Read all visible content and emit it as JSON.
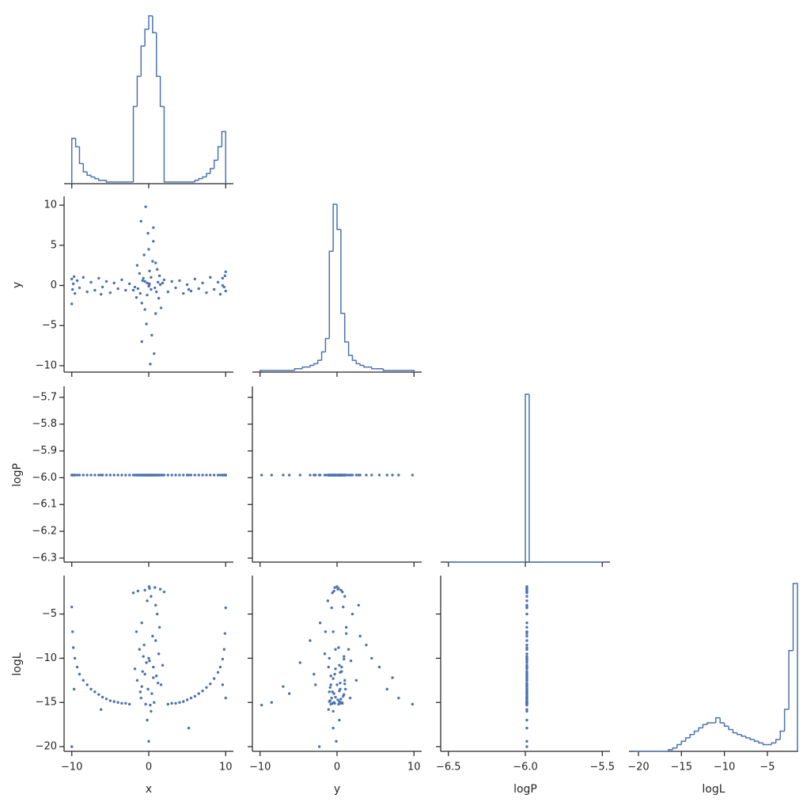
{
  "chart_data": {
    "type": "corner",
    "color": "#4c72b0",
    "variables": [
      {
        "name": "x",
        "xlim": [
          -11,
          11
        ],
        "xticks": [
          {
            "value": -10,
            "label": "−10"
          },
          0,
          10
        ]
      },
      {
        "name": "y",
        "xlim": [
          -11,
          11
        ],
        "xticks": [
          {
            "value": -10,
            "label": "−10"
          },
          0,
          10
        ],
        "ylim": [
          -10.8,
          11.1
        ],
        "yticks": [
          {
            "value": -10,
            "label": "−10"
          },
          {
            "value": -5,
            "label": "−5"
          },
          0,
          5,
          10
        ]
      },
      {
        "name": "logP",
        "xlim": [
          -6.55,
          -5.45
        ],
        "xticks": [
          {
            "value": -6.5,
            "label": "−6.5"
          },
          {
            "value": -6.0,
            "label": "−6.0"
          },
          {
            "value": -5.5,
            "label": "−5.5"
          }
        ],
        "ylim": [
          -6.315,
          -5.659
        ],
        "yticks": [
          {
            "value": -6.3,
            "label": "−6.3"
          },
          {
            "value": -6.2,
            "label": "−6.2"
          },
          {
            "value": -6.1,
            "label": "−6.1"
          },
          {
            "value": -6.0,
            "label": "−6.0"
          },
          {
            "value": -5.9,
            "label": "−5.9"
          },
          {
            "value": -5.8,
            "label": "−5.8"
          },
          {
            "value": -5.7,
            "label": "−5.7"
          }
        ]
      },
      {
        "name": "logL",
        "xlim": [
          -21.1,
          -1.4
        ],
        "xticks": [
          {
            "value": -20,
            "label": "−20"
          },
          {
            "value": -15,
            "label": "−15"
          },
          {
            "value": -10,
            "label": "−10"
          },
          {
            "value": -5,
            "label": "−5"
          }
        ],
        "ylim": [
          -20.53,
          -0.65
        ],
        "yticks": [
          {
            "value": -20,
            "label": "−20"
          },
          {
            "value": -15,
            "label": "−15"
          },
          {
            "value": -10,
            "label": "−10"
          },
          {
            "value": -5,
            "label": "−5"
          }
        ]
      }
    ],
    "samples": {
      "x": [
        0.1,
        -0.5,
        0.8,
        1.5,
        -1.4,
        0.3,
        -0.2,
        1.1,
        -0.9,
        0.5,
        -0.6,
        0.9,
        -1.2,
        1.3,
        0.0,
        -0.3,
        0.6,
        -0.8,
        1.0,
        -1.5,
        1.6,
        -0.1,
        0.4,
        -1.0,
        0.7,
        -0.4,
        0.2,
        1.8,
        -1.8,
        0.05,
        -0.7,
        1.2,
        -1.1,
        0.3,
        -0.2,
        1.4,
        -1.6,
        0.9,
        -0.5,
        2.0,
        -2.0,
        0.0,
        0.6,
        -0.9,
        0.1,
        -10,
        -9.9,
        -9.8,
        -9.6,
        -9.3,
        -9.0,
        -8.5,
        -8.0,
        -7.5,
        -7.0,
        -6.5,
        -6.0,
        -5.5,
        -5.0,
        -4.5,
        -4.0,
        -3.5,
        -3.0,
        -2.5,
        -10,
        -9.7,
        -6.2,
        10,
        9.9,
        9.8,
        9.6,
        9.3,
        9.0,
        8.5,
        8.0,
        7.5,
        7.0,
        6.5,
        6.0,
        5.5,
        5.0,
        4.5,
        4.0,
        3.5,
        3.0,
        2.5,
        10,
        5.2,
        9.6
      ],
      "y": [
        0.2,
        0.5,
        -0.3,
        0.1,
        -0.4,
        1.0,
        -1.2,
        2.0,
        -2.2,
        3.0,
        3.8,
        -3.5,
        1.5,
        -1.6,
        4.5,
        -4.8,
        5.5,
        0.6,
        -0.8,
        2.5,
        -2.8,
        6.5,
        -6.2,
        8.0,
        -8.5,
        9.8,
        -9.8,
        0.3,
        -0.2,
        0.0,
        0.9,
        0.4,
        -1.0,
        -0.5,
        0.3,
        1.2,
        -1.5,
        2.8,
        -3.0,
        0.7,
        -0.6,
        -0.1,
        7.2,
        -7.0,
        1.8,
        0.8,
        -0.5,
        0.2,
        -1.0,
        0.6,
        -0.3,
        1.0,
        -0.8,
        0.4,
        -0.6,
        0.9,
        -0.2,
        0.5,
        -0.9,
        0.3,
        -0.4,
        0.7,
        -0.6,
        0.2,
        -2.3,
        1.1,
        -1.1,
        -0.7,
        1.2,
        -0.2,
        0.9,
        -1.1,
        0.4,
        -0.5,
        1.0,
        -0.9,
        0.3,
        -0.4,
        0.8,
        -0.7,
        0.1,
        -1.0,
        0.6,
        -0.3,
        0.5,
        -0.8,
        1.7,
        -0.5,
        0.0
      ],
      "logP": [
        -5.99,
        -5.99,
        -5.99,
        -5.99,
        -5.99,
        -5.99,
        -5.99,
        -5.99,
        -5.99,
        -5.99,
        -5.99,
        -5.99,
        -5.99,
        -5.99,
        -5.99,
        -5.99,
        -5.99,
        -5.99,
        -5.99,
        -5.99,
        -5.99,
        -5.99,
        -5.99,
        -5.99,
        -5.99,
        -5.99,
        -5.99,
        -5.99,
        -5.99,
        -5.99,
        -5.99,
        -5.99,
        -5.99,
        -5.99,
        -5.99,
        -5.99,
        -5.99,
        -5.99,
        -5.99,
        -5.99,
        -5.99,
        -5.99,
        -5.99,
        -5.99,
        -5.99,
        -5.99,
        -5.99,
        -5.99,
        -5.99,
        -5.99,
        -5.99,
        -5.99,
        -5.99,
        -5.99,
        -5.99,
        -5.99,
        -5.99,
        -5.99,
        -5.99,
        -5.99,
        -5.99,
        -5.99,
        -5.99,
        -5.99,
        -5.99,
        -5.99,
        -5.99,
        -5.99,
        -5.99,
        -5.99,
        -5.99,
        -5.99,
        -5.99,
        -5.99,
        -5.99,
        -5.99,
        -5.99,
        -5.99,
        -5.99,
        -5.99,
        -5.99,
        -5.99,
        -5.99,
        -5.99,
        -5.99,
        -5.99,
        -5.99,
        -5.99,
        -5.99
      ],
      "logL": [
        -2.1,
        -2.3,
        -2.0,
        -2.2,
        -2.4,
        -3.0,
        -3.5,
        -5.0,
        -6.0,
        -7.5,
        -8.5,
        -8.0,
        -9.0,
        -9.5,
        -10.0,
        -10.5,
        -11.0,
        -11.5,
        -12.0,
        -12.5,
        -13.0,
        -13.5,
        -14.0,
        -14.5,
        -15.0,
        -15.2,
        -15.3,
        -10.8,
        -11.2,
        -1.9,
        -9.8,
        -12.8,
        -13.8,
        -16.0,
        -17.0,
        -6.5,
        -7.0,
        -4.0,
        -11.8,
        -2.5,
        -2.6,
        -19.4,
        -12.2,
        -13.2,
        -10.3,
        -4.2,
        -7.0,
        -8.8,
        -10.0,
        -11.0,
        -11.8,
        -12.5,
        -13.0,
        -13.5,
        -13.8,
        -14.1,
        -14.4,
        -14.6,
        -14.8,
        -14.9,
        -15.0,
        -15.1,
        -15.1,
        -15.2,
        -20.0,
        -13.5,
        -15.8,
        -4.3,
        -7.2,
        -9.0,
        -10.1,
        -11.0,
        -11.6,
        -12.3,
        -12.9,
        -13.3,
        -13.7,
        -14.0,
        -14.3,
        -14.5,
        -14.7,
        -14.9,
        -15.0,
        -15.1,
        -15.1,
        -15.2,
        -14.5,
        -17.9,
        -13.0
      ]
    },
    "histograms": {
      "x": {
        "bins": [
          -10,
          -9.5,
          -9,
          -8.5,
          -8,
          -7.5,
          -7,
          -6.5,
          -6,
          -5.5,
          -5,
          -4.5,
          -4,
          -3.5,
          -3,
          -2.5,
          -2,
          -1.5,
          -1,
          -0.5,
          0,
          0.5,
          1,
          1.5,
          2,
          2.5,
          3,
          3.5,
          4,
          4.5,
          5,
          5.5,
          6,
          6.5,
          7,
          7.5,
          8,
          8.5,
          9,
          9.5,
          10
        ],
        "counts": [
          27,
          22,
          12,
          7,
          5,
          4,
          3,
          2,
          2,
          1,
          1,
          1,
          1,
          1,
          1,
          1,
          46,
          64,
          82,
          92,
          100,
          90,
          64,
          46,
          1,
          1,
          1,
          1,
          1,
          1,
          1,
          1,
          2,
          3,
          4,
          6,
          9,
          14,
          22,
          31
        ]
      },
      "y": {
        "bins": [
          -10,
          -9.5,
          -9,
          -8.5,
          -8,
          -7.5,
          -7,
          -6.5,
          -6,
          -5.5,
          -5,
          -4.5,
          -4,
          -3.5,
          -3,
          -2.5,
          -2,
          -1.5,
          -1,
          -0.5,
          0,
          0.5,
          1,
          1.5,
          2,
          2.5,
          3,
          3.5,
          4,
          4.5,
          5,
          5.5,
          6,
          6.5,
          7,
          7.5,
          8,
          8.5,
          9,
          9.5,
          10
        ],
        "counts": [
          1,
          1,
          1,
          1,
          1,
          1,
          1,
          1,
          1,
          2,
          2,
          3,
          3,
          4,
          5,
          7,
          12,
          20,
          72,
          100,
          85,
          35,
          18,
          10,
          7,
          5,
          4,
          3,
          3,
          2,
          2,
          2,
          1,
          1,
          1,
          1,
          1,
          1,
          1,
          1
        ]
      },
      "logP": {
        "bins": [
          -6.5,
          -6.0,
          -5.975,
          -5.5
        ],
        "counts": [
          0,
          100,
          0
        ]
      },
      "logL": {
        "bins": [
          -20.5,
          -20,
          -19.5,
          -19,
          -18.5,
          -18,
          -17.5,
          -17,
          -16.5,
          -16,
          -15.5,
          -15,
          -14.5,
          -14,
          -13.5,
          -13,
          -12.5,
          -12,
          -11.5,
          -11,
          -10.5,
          -10,
          -9.5,
          -9,
          -8.5,
          -8,
          -7.5,
          -7,
          -6.5,
          -6,
          -5.5,
          -5,
          -4.5,
          -4,
          -3.5,
          -3,
          -2.5,
          -2,
          -1.5
        ],
        "counts": [
          0,
          0,
          0,
          0,
          0,
          0,
          0,
          0,
          1,
          2,
          4,
          6,
          8,
          10,
          12,
          14,
          16,
          17,
          17,
          20,
          17,
          15,
          13,
          11,
          10,
          9,
          8,
          7,
          6,
          5,
          4,
          4,
          5,
          7,
          12,
          25,
          60,
          100
        ]
      }
    }
  }
}
